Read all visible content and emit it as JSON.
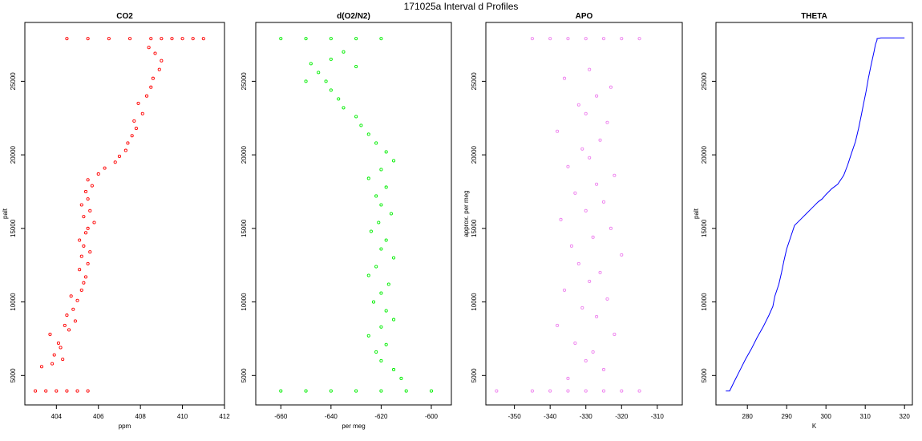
{
  "figure": {
    "title": "171025a   Interval d Profiles"
  },
  "chart_data": [
    {
      "type": "scatter",
      "title": "CO2",
      "xlabel": "ppm",
      "ylabel": "palt",
      "xlim": [
        402.5,
        412.0
      ],
      "ylim": [
        3000,
        29000
      ],
      "xticks": [
        404,
        406,
        408,
        410,
        412
      ],
      "yticks": [
        5000,
        10000,
        15000,
        20000,
        25000
      ],
      "series": [
        {
          "color": "#ff0000",
          "mode": "points",
          "x": [
            403.0,
            403.5,
            404.0,
            404.5,
            405.0,
            405.5,
            403.3,
            403.8,
            404.3,
            403.9,
            404.2,
            404.1,
            403.7,
            404.6,
            404.4,
            404.9,
            404.5,
            404.8,
            405.0,
            404.7,
            405.2,
            405.3,
            405.4,
            405.1,
            405.5,
            405.2,
            405.6,
            405.3,
            405.1,
            405.4,
            405.5,
            405.8,
            405.3,
            405.6,
            405.2,
            405.5,
            405.4,
            405.7,
            405.5,
            406.0,
            406.3,
            406.8,
            407.0,
            407.3,
            407.4,
            407.6,
            407.8,
            407.7,
            408.1,
            407.9,
            408.3,
            408.5,
            408.6,
            408.9,
            409.0,
            408.7,
            408.4,
            404.5,
            405.5,
            406.5,
            407.5,
            408.5,
            409.0,
            409.5,
            410.0,
            410.5,
            411.0
          ],
          "y": [
            3950,
            3950,
            3950,
            3950,
            3950,
            3950,
            5600,
            5800,
            6100,
            6400,
            6900,
            7200,
            7800,
            8100,
            8400,
            8700,
            9100,
            9500,
            10100,
            10400,
            10800,
            11300,
            11700,
            12200,
            12600,
            13100,
            13400,
            13800,
            14200,
            14700,
            15000,
            15400,
            15800,
            16200,
            16600,
            17000,
            17500,
            17900,
            18300,
            18700,
            19100,
            19500,
            19900,
            20300,
            20800,
            21300,
            21800,
            22300,
            22800,
            23500,
            24000,
            24600,
            25200,
            25800,
            26400,
            26900,
            27300,
            27900,
            27900,
            27900,
            27900,
            27900,
            27900,
            27900,
            27900,
            27900,
            27900
          ]
        }
      ]
    },
    {
      "type": "scatter",
      "title": "d(O2/N2)",
      "xlabel": "per meg",
      "ylabel": "",
      "xlim": [
        -670,
        -592
      ],
      "ylim": [
        3000,
        29000
      ],
      "xticks": [
        -660,
        -640,
        -620,
        -600
      ],
      "yticks": [
        5000,
        10000,
        15000,
        20000,
        25000
      ],
      "series": [
        {
          "color": "#00ee00",
          "mode": "points",
          "x": [
            -660,
            -650,
            -640,
            -630,
            -620,
            -610,
            -600,
            -612,
            -615,
            -620,
            -622,
            -618,
            -625,
            -620,
            -615,
            -618,
            -623,
            -620,
            -617,
            -625,
            -622,
            -615,
            -620,
            -618,
            -624,
            -621,
            -616,
            -620,
            -622,
            -618,
            -625,
            -620,
            -615,
            -618,
            -622,
            -625,
            -628,
            -630,
            -635,
            -637,
            -640,
            -642,
            -645,
            -648,
            -650,
            -640,
            -635,
            -630,
            -660,
            -650,
            -640,
            -630,
            -620
          ],
          "y": [
            3950,
            3950,
            3950,
            3950,
            3950,
            3950,
            3950,
            4800,
            5400,
            6000,
            6600,
            7100,
            7700,
            8300,
            8800,
            9400,
            10000,
            10600,
            11200,
            11800,
            12400,
            13000,
            13600,
            14200,
            14800,
            15400,
            16000,
            16600,
            17200,
            17800,
            18400,
            19000,
            19600,
            20200,
            20800,
            21400,
            22000,
            22600,
            23200,
            23800,
            24400,
            25000,
            25600,
            26200,
            25000,
            26500,
            27000,
            26000,
            27900,
            27900,
            27900,
            27900,
            27900
          ]
        }
      ]
    },
    {
      "type": "scatter",
      "title": "APO",
      "xlabel": "",
      "ylabel": "approx. per meg",
      "xlim": [
        -358,
        -303
      ],
      "ylim": [
        3000,
        29000
      ],
      "xticks": [
        -350,
        -340,
        -330,
        -320,
        -310
      ],
      "yticks": [
        5000,
        10000,
        15000,
        20000,
        25000
      ],
      "series": [
        {
          "color": "#ee82ee",
          "mode": "points",
          "x": [
            -355,
            -345,
            -335,
            -325,
            -315,
            -340,
            -330,
            -320,
            -335,
            -325,
            -330,
            -328,
            -333,
            -322,
            -338,
            -327,
            -331,
            -324,
            -336,
            -329,
            -326,
            -332,
            -320,
            -334,
            -328,
            -323,
            -337,
            -330,
            -325,
            -333,
            -327,
            -322,
            -335,
            -329,
            -331,
            -326,
            -338,
            -324,
            -330,
            -332,
            -327,
            -323,
            -336,
            -329,
            -345,
            -340,
            -335,
            -330,
            -325,
            -320,
            -315
          ],
          "y": [
            3950,
            3950,
            3950,
            3950,
            3950,
            3950,
            3950,
            3950,
            4800,
            5400,
            6000,
            6600,
            7200,
            7800,
            8400,
            9000,
            9600,
            10200,
            10800,
            11400,
            12000,
            12600,
            13200,
            13800,
            14400,
            15000,
            15600,
            16200,
            16800,
            17400,
            18000,
            18600,
            19200,
            19800,
            20400,
            21000,
            21600,
            22200,
            22800,
            23400,
            24000,
            24600,
            25200,
            25800,
            27900,
            27900,
            27900,
            27900,
            27900,
            27900,
            27900
          ]
        }
      ]
    },
    {
      "type": "line",
      "title": "THETA",
      "xlabel": "K",
      "ylabel": "palt",
      "xlim": [
        272,
        322
      ],
      "ylim": [
        3000,
        29000
      ],
      "xticks": [
        280,
        290,
        300,
        310,
        320
      ],
      "yticks": [
        5000,
        10000,
        15000,
        20000,
        25000
      ],
      "series": [
        {
          "color": "#0000ff",
          "mode": "line",
          "x": [
            274.5,
            275.5,
            276.5,
            278.0,
            279.5,
            281.0,
            282.5,
            284.0,
            285.5,
            286.5,
            287.0,
            288.0,
            288.7,
            289.3,
            290.0,
            291.0,
            292.0,
            293.5,
            295.0,
            296.5,
            298.0,
            299.0,
            300.0,
            301.5,
            303.0,
            304.5,
            305.5,
            306.5,
            307.5,
            308.3,
            309.0,
            309.6,
            310.2,
            310.8,
            311.4,
            311.9,
            312.3,
            312.6,
            313.0,
            313.0,
            314.0,
            316.0,
            320.0
          ],
          "y": [
            3950,
            3950,
            4500,
            5300,
            6100,
            6800,
            7600,
            8300,
            9100,
            9700,
            10400,
            11200,
            12000,
            12800,
            13600,
            14400,
            15200,
            15600,
            16000,
            16400,
            16800,
            17000,
            17300,
            17700,
            18000,
            18600,
            19300,
            20100,
            20900,
            21800,
            22700,
            23500,
            24300,
            25200,
            26000,
            26600,
            27100,
            27500,
            27800,
            27900,
            27950,
            27950,
            27950
          ]
        }
      ]
    }
  ]
}
